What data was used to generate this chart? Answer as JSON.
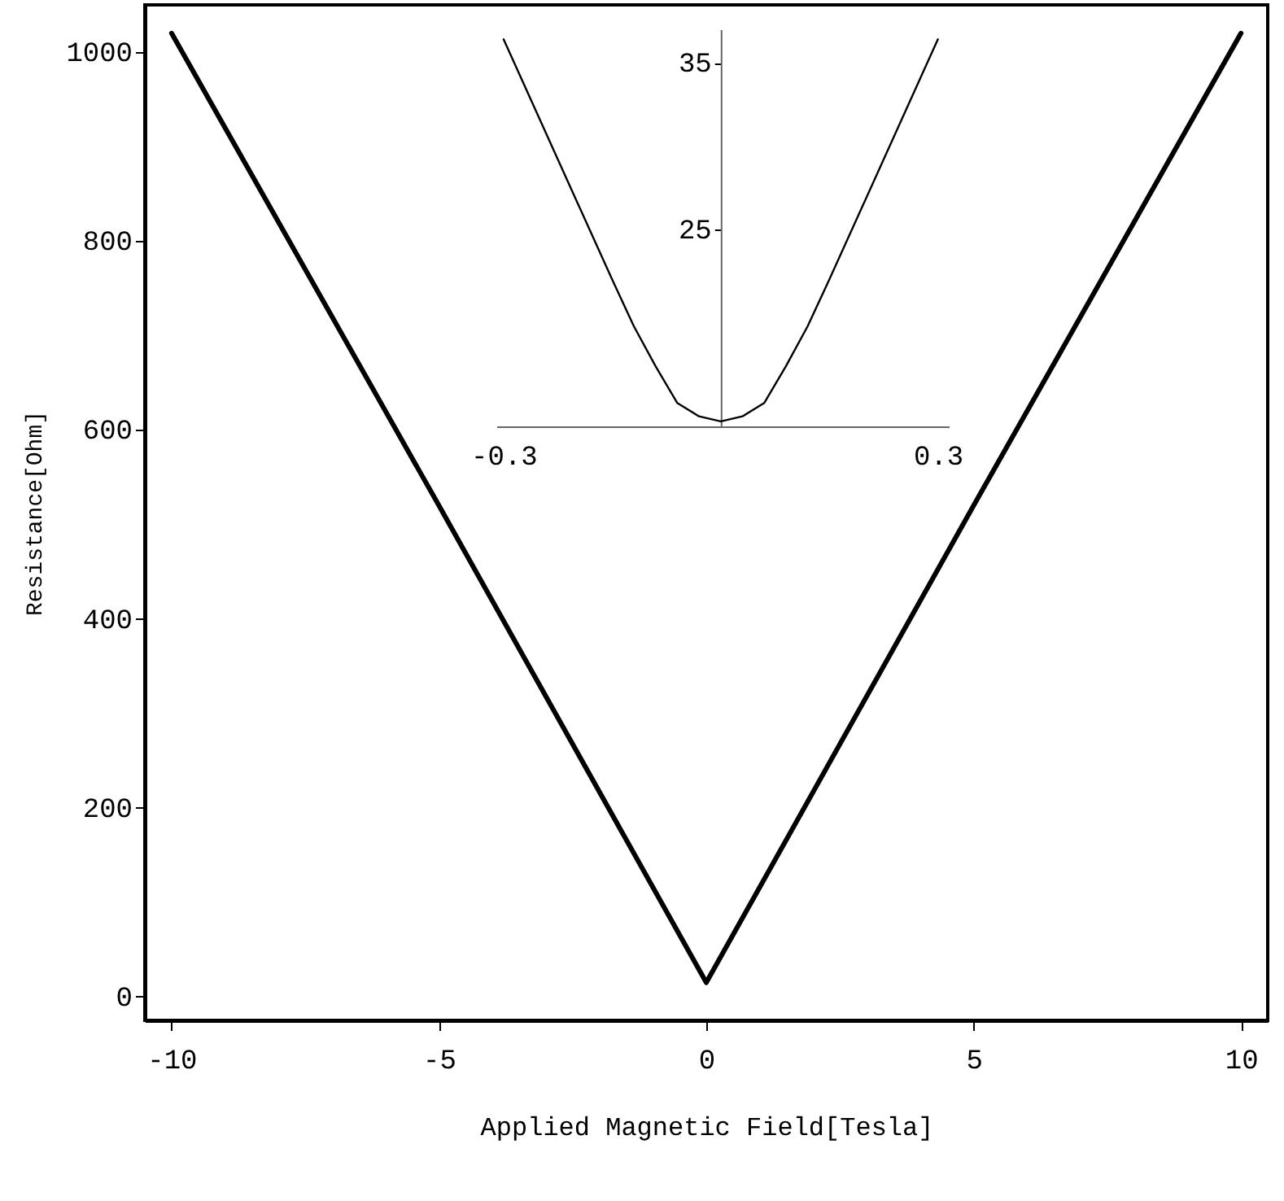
{
  "chart_data": [
    {
      "type": "line",
      "xlabel": "Applied Magnetic Field[Tesla]",
      "ylabel": "Resistance[Ohm]",
      "x": [
        -10,
        -5,
        0,
        5,
        10
      ],
      "xlim": [
        -10.5,
        10.5
      ],
      "ylim": [
        -25,
        1050
      ],
      "xticks": [
        -10,
        -5,
        0,
        5,
        10
      ],
      "yticks": [
        0,
        200,
        400,
        600,
        800,
        1000
      ],
      "series": [
        {
          "color": "#000000",
          "values": [
            1020,
            520,
            15,
            520,
            1020
          ]
        }
      ]
    },
    {
      "type": "line",
      "x": [
        -0.3,
        -0.2,
        -0.15,
        -0.12,
        -0.09,
        -0.06,
        -0.03,
        0,
        0.03,
        0.06,
        0.09,
        0.12,
        0.15,
        0.2,
        0.3
      ],
      "xlim": [
        -0.31,
        0.315
      ],
      "ylim": [
        13.2,
        37
      ],
      "xticks": [
        -0.3,
        0.3
      ],
      "yticks": [
        25,
        35
      ],
      "series": [
        {
          "color": "#000000",
          "values": [
            36.4,
            26.8,
            22,
            19.2,
            16.8,
            14.6,
            13.8,
            13.5,
            13.8,
            14.6,
            16.8,
            19.2,
            22,
            26.8,
            36.4
          ]
        }
      ]
    }
  ]
}
